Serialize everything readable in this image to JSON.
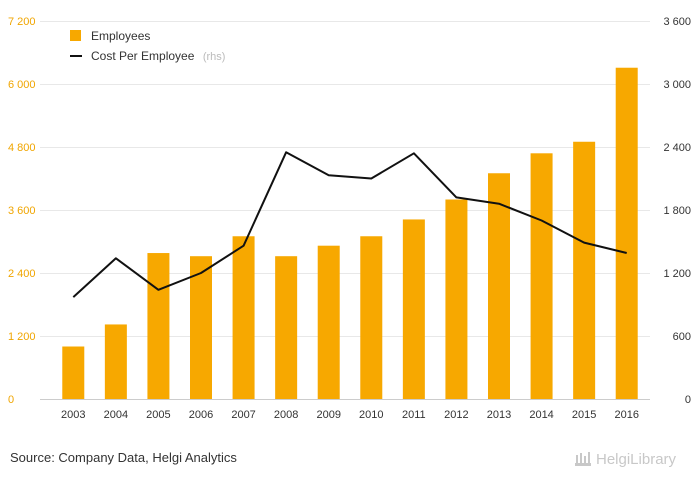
{
  "chart_data": {
    "type": "bar+line",
    "categories": [
      "2003",
      "2004",
      "2005",
      "2006",
      "2007",
      "2008",
      "2009",
      "2010",
      "2011",
      "2012",
      "2013",
      "2014",
      "2015",
      "2016"
    ],
    "series": [
      {
        "name": "Employees",
        "type": "bar",
        "axis": "left",
        "color": "#f7a800",
        "values": [
          1000,
          1420,
          2780,
          2720,
          3100,
          2720,
          2920,
          3100,
          3420,
          3800,
          4300,
          4680,
          4900,
          6310
        ]
      },
      {
        "name": "Cost Per Employee",
        "type": "line",
        "axis": "right",
        "color": "#111111",
        "values": [
          970,
          1340,
          1040,
          1200,
          1460,
          2350,
          2130,
          2100,
          2340,
          1920,
          1860,
          1700,
          1490,
          1390
        ]
      }
    ],
    "left_axis": {
      "ylim": [
        0,
        7200
      ],
      "ticks": [
        "0",
        "1 200",
        "2 400",
        "3 600",
        "4 800",
        "6 000",
        "7 200"
      ]
    },
    "right_axis": {
      "ylim": [
        0,
        3600
      ],
      "ticks": [
        "0",
        "600",
        "1 200",
        "1 800",
        "2 400",
        "3 000",
        "3 600"
      ]
    },
    "legend": {
      "placement": "top-left",
      "items": [
        {
          "label": "Employees",
          "suffix": ""
        },
        {
          "label": "Cost Per Employee",
          "suffix": "(rhs)"
        }
      ]
    },
    "grid": true
  },
  "footer": {
    "source": "Source: Company Data, Helgi Analytics",
    "brand": "HelgiLibrary"
  }
}
